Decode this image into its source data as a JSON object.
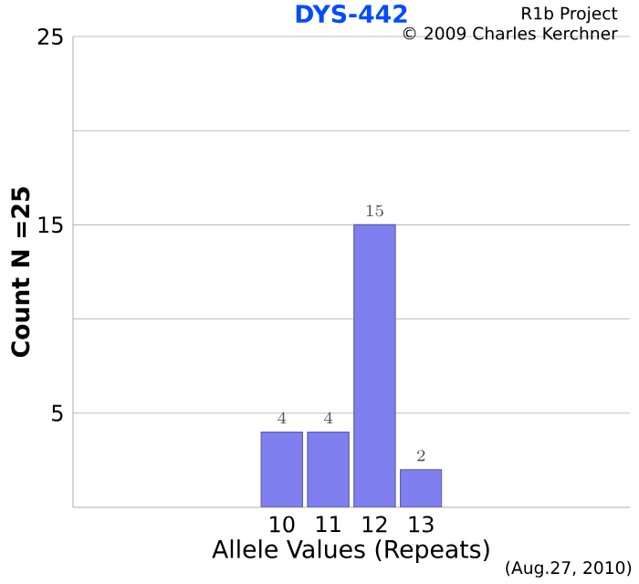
{
  "chart_data": {
    "type": "bar",
    "title": "DYS-442",
    "xlabel": "Allele Values (Repeats)",
    "ylabel": "Count N =25",
    "categories": [
      null,
      null,
      null,
      null,
      "10",
      "11",
      "12",
      "13",
      null,
      null,
      null,
      null
    ],
    "values": [
      null,
      null,
      null,
      null,
      4,
      4,
      15,
      2,
      null,
      null,
      null,
      null
    ],
    "color": "#7f7ff0",
    "data_labels": true,
    "grid": "y",
    "ylim": [
      0,
      25
    ],
    "yticks": [
      5,
      {
        "value": 10,
        "label": null
      },
      15,
      {
        "value": 20,
        "label": null
      },
      25
    ],
    "annotations": [
      "R1b Project",
      "© 2009 Charles Kerchner",
      "(Aug.27, 2010)"
    ]
  }
}
